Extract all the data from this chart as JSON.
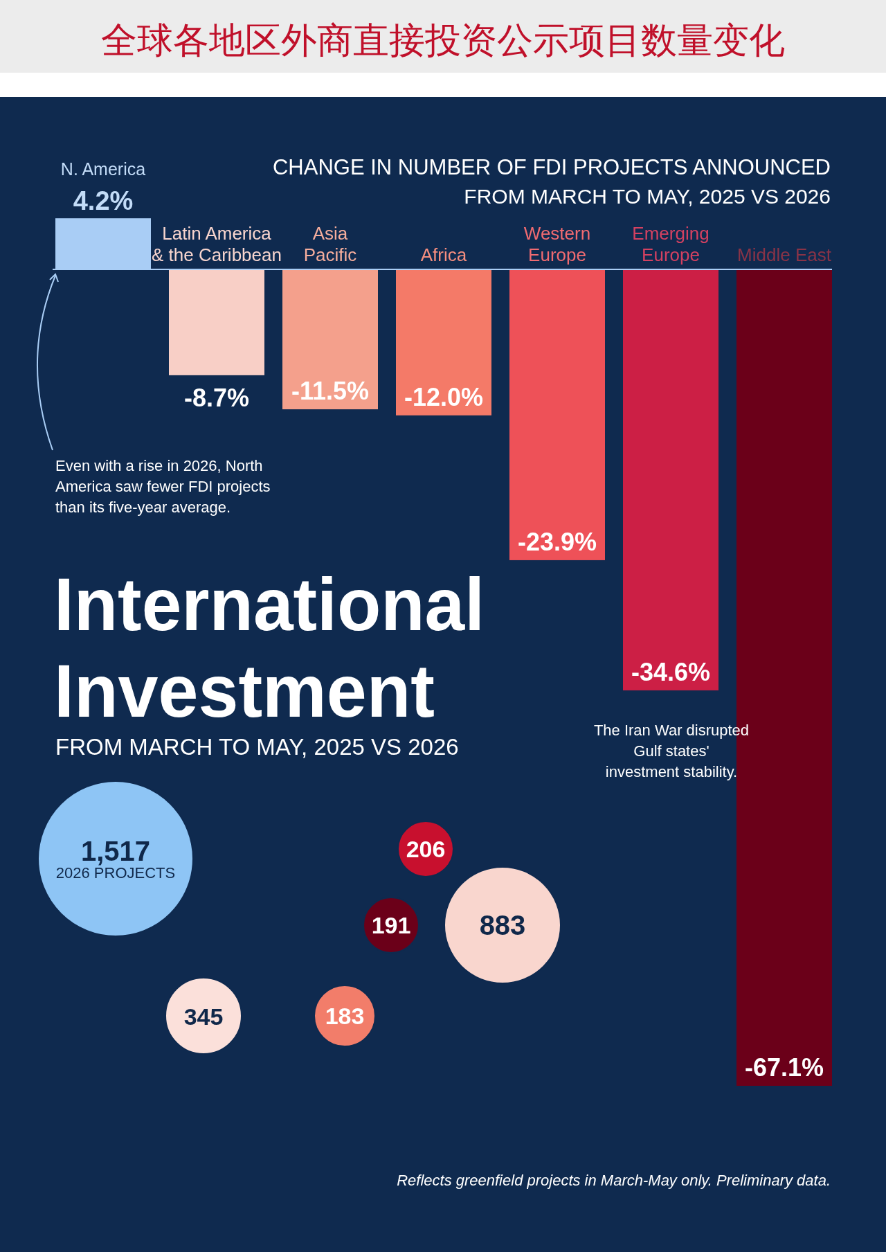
{
  "chart_data": {
    "type": "bar",
    "title": "全球各地区外商直接投资公示项目数量变化",
    "subtitle": "International Investment",
    "categories": [
      "N. America",
      "Latin America & the Caribbean",
      "Asia Pacific",
      "Africa",
      "Western Europe",
      "Emerging Europe",
      "Middle East"
    ],
    "values": [
      4.2,
      -8.7,
      -11.5,
      -12.0,
      -23.9,
      -34.6,
      -67.1
    ],
    "value_labels": [
      "4.2%",
      "-8.7%",
      "-11.5%",
      "-12.0%",
      "-23.9%",
      "-34.6%",
      "-67.1%"
    ],
    "colors": [
      "#a9cdf5",
      "#f8cfc6",
      "#f4a08c",
      "#f47a68",
      "#ee5158",
      "#cc1f45",
      "#6b0019"
    ],
    "annotations": [
      "CHANGE IN NUMBER OF FDI PROJECTS ANNOUNCED",
      "FROM MARCH TO MAY, 2025 VS 2026",
      "FROM MARCH TO MAY, 2025 VS 2026",
      "Even with a rise in 2026, North America saw fewer FDI projects than its five-year average.",
      "The Iran War disrupted Gulf states' investment stability.",
      "1,517",
      "2026 PROJECTS",
      "206",
      "191",
      "883",
      "345",
      "183",
      "Reflects greenfield projects in March-May only. Preliminary data."
    ]
  }
}
